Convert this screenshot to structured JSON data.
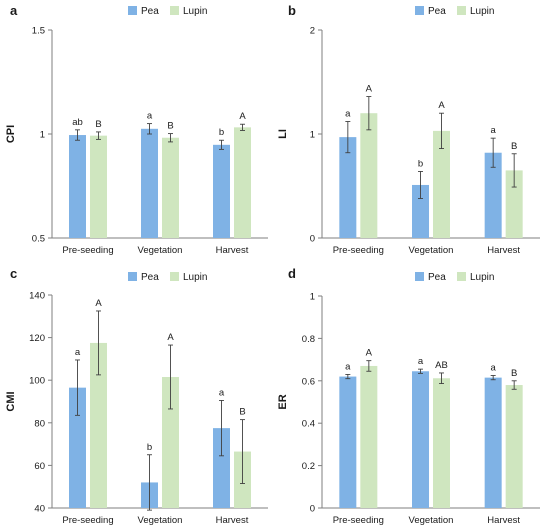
{
  "colors": {
    "pea": "#7fb2e5",
    "lupin": "#cfe6bf",
    "axis": "#7f7f7f",
    "error": "#404040"
  },
  "legend": [
    "Pea",
    "Lupin"
  ],
  "chart_data": [
    {
      "panel": "a",
      "type": "bar",
      "ylabel": "CPI",
      "categories": [
        "Pre-seeding",
        "Vegetation",
        "Harvest"
      ],
      "ylim": [
        0.5,
        1.5
      ],
      "yticks": [
        "0.5",
        "1",
        "1.5"
      ],
      "ytick_values": [
        0.5,
        1,
        1.5
      ],
      "series": [
        {
          "name": "Pea",
          "values": [
            0.995,
            1.025,
            0.948
          ],
          "errors": [
            0.025,
            0.025,
            0.022
          ],
          "labels": [
            "ab",
            "a",
            "b"
          ]
        },
        {
          "name": "Lupin",
          "values": [
            0.992,
            0.982,
            1.032
          ],
          "errors": [
            0.018,
            0.02,
            0.015
          ],
          "labels": [
            "B",
            "B",
            "A"
          ]
        }
      ]
    },
    {
      "panel": "b",
      "type": "bar",
      "ylabel": "LI",
      "categories": [
        "Pre-seeding",
        "Vegetation",
        "Harvest"
      ],
      "ylim": [
        0,
        2
      ],
      "yticks": [
        "0",
        "1",
        "2"
      ],
      "ytick_values": [
        0,
        1,
        2
      ],
      "series": [
        {
          "name": "Pea",
          "values": [
            0.97,
            0.51,
            0.82
          ],
          "errors": [
            0.15,
            0.13,
            0.14
          ],
          "labels": [
            "a",
            "b",
            "a"
          ]
        },
        {
          "name": "Lupin",
          "values": [
            1.2,
            1.03,
            0.65
          ],
          "errors": [
            0.16,
            0.17,
            0.16
          ],
          "labels": [
            "A",
            "A",
            "B"
          ]
        }
      ]
    },
    {
      "panel": "c",
      "type": "bar",
      "ylabel": "CMI",
      "categories": [
        "Pre-seeding",
        "Vegetation",
        "Harvest"
      ],
      "ylim": [
        40,
        140
      ],
      "yticks": [
        "40",
        "60",
        "80",
        "100",
        "120",
        "140"
      ],
      "ytick_values": [
        40,
        60,
        80,
        100,
        120,
        140
      ],
      "series": [
        {
          "name": "Pea",
          "values": [
            96.5,
            52,
            77.5
          ],
          "errors": [
            13,
            13,
            13
          ],
          "labels": [
            "a",
            "b",
            "a"
          ]
        },
        {
          "name": "Lupin",
          "values": [
            117.5,
            101.5,
            66.5
          ],
          "errors": [
            15,
            15,
            15
          ],
          "labels": [
            "A",
            "A",
            "B"
          ]
        }
      ]
    },
    {
      "panel": "d",
      "type": "bar",
      "ylabel": "ER",
      "categories": [
        "Pre-seeding",
        "Vegetation",
        "Harvest"
      ],
      "ylim": [
        0,
        1
      ],
      "yticks": [
        "0",
        "0.2",
        "0.4",
        "0.6",
        "0.8",
        "1"
      ],
      "ytick_values": [
        0,
        0.2,
        0.4,
        0.6,
        0.8,
        1
      ],
      "series": [
        {
          "name": "Pea",
          "values": [
            0.62,
            0.645,
            0.615
          ],
          "errors": [
            0.01,
            0.01,
            0.01
          ],
          "labels": [
            "a",
            "a",
            "a"
          ]
        },
        {
          "name": "Lupin",
          "values": [
            0.67,
            0.612,
            0.58
          ],
          "errors": [
            0.025,
            0.025,
            0.02
          ],
          "labels": [
            "A",
            "AB",
            "B"
          ]
        }
      ]
    }
  ]
}
